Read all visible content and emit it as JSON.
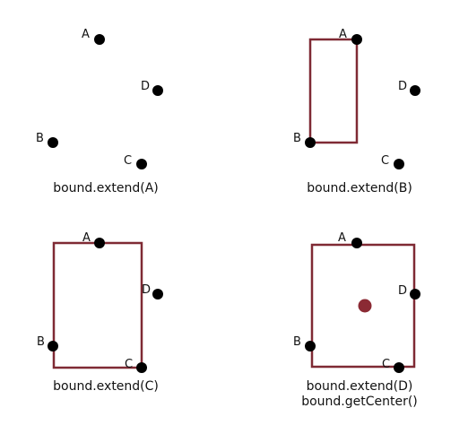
{
  "colors": {
    "point": "#000000",
    "bound": "#7f2a34",
    "center": "#8b2a34",
    "text": "#111111"
  },
  "panels": [
    {
      "caption": [
        "bound.extend(A)"
      ],
      "points": [
        {
          "label": "A"
        },
        {
          "label": "D"
        },
        {
          "label": "B"
        },
        {
          "label": "C"
        }
      ]
    },
    {
      "caption": [
        "bound.extend(B)"
      ],
      "points": [
        {
          "label": "A"
        },
        {
          "label": "D"
        },
        {
          "label": "B"
        },
        {
          "label": "C"
        }
      ]
    },
    {
      "caption": [
        "bound.extend(C)"
      ],
      "points": [
        {
          "label": "A"
        },
        {
          "label": "D"
        },
        {
          "label": "B"
        },
        {
          "label": "C"
        }
      ]
    },
    {
      "caption": [
        "bound.extend(D)",
        "bound.getCenter()"
      ],
      "points": [
        {
          "label": "A"
        },
        {
          "label": "D"
        },
        {
          "label": "B"
        },
        {
          "label": "C"
        }
      ]
    }
  ]
}
